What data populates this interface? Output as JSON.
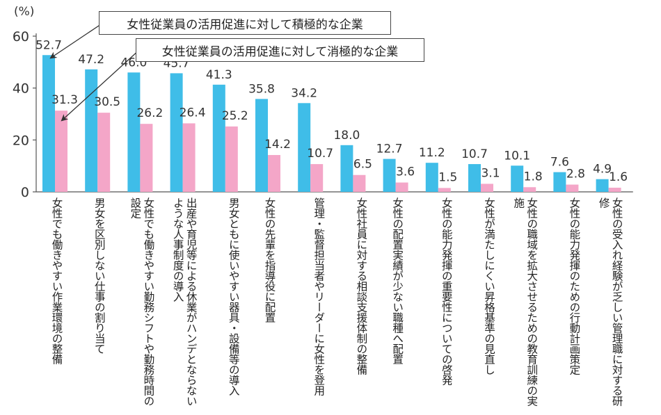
{
  "chart_data": {
    "type": "bar",
    "y_unit": "(%)",
    "ylim": [
      0,
      60
    ],
    "yticks": [
      0,
      20,
      40,
      60
    ],
    "grid": false,
    "categories": [
      "女性でも働きやすい作業環境の整備",
      "男女を区別しない仕事の割り当て",
      "女性でも働きやすい勤務シフトや勤務時間の設定",
      "出産や育児等による休業がハンデとならないような人事制度の導入",
      "男女ともに使いやすい器具・設備等の導入",
      "女性の先輩を指導役に配置",
      "管理・監督担当者やリーダーに女性を登用",
      "女性社員に対する相談支援体制の整備",
      "女性の配置実績が少ない職種へ配置",
      "女性の能力発揮の重要性についての啓発",
      "女性が満たしにくい昇格基準の見直し",
      "女性の職域を拡大させるための教育訓練の実施",
      "女性の能力発揮のための行動計画策定",
      "女性の受入れ経験が乏しい管理職に対する研修"
    ],
    "series": [
      {
        "name": "女性従業員の活用促進に対して積極的な企業",
        "color": "#3fbde8",
        "values": [
          52.7,
          47.2,
          46.0,
          45.7,
          41.3,
          35.8,
          34.2,
          18.0,
          12.7,
          11.2,
          10.7,
          10.1,
          7.6,
          4.9
        ],
        "labels": [
          "52.7",
          "47.2",
          "46.0",
          "45.7",
          "41.3",
          "35.8",
          "34.2",
          "18.0",
          "12.7",
          "11.2",
          "10.7",
          "10.1",
          "7.6",
          "4.9"
        ]
      },
      {
        "name": "女性従業員の活用促進に対して消極的な企業",
        "color": "#f4a6c8",
        "values": [
          31.3,
          30.5,
          26.2,
          26.4,
          25.2,
          14.2,
          10.7,
          6.5,
          3.6,
          1.5,
          3.1,
          1.8,
          2.8,
          1.6
        ],
        "labels": [
          "31.3",
          "30.5",
          "26.2",
          "26.4",
          "25.2",
          "14.2",
          "10.7",
          "6.5",
          "3.6",
          "1.5",
          "3.1",
          "1.8",
          "2.8",
          "1.6"
        ]
      }
    ]
  }
}
